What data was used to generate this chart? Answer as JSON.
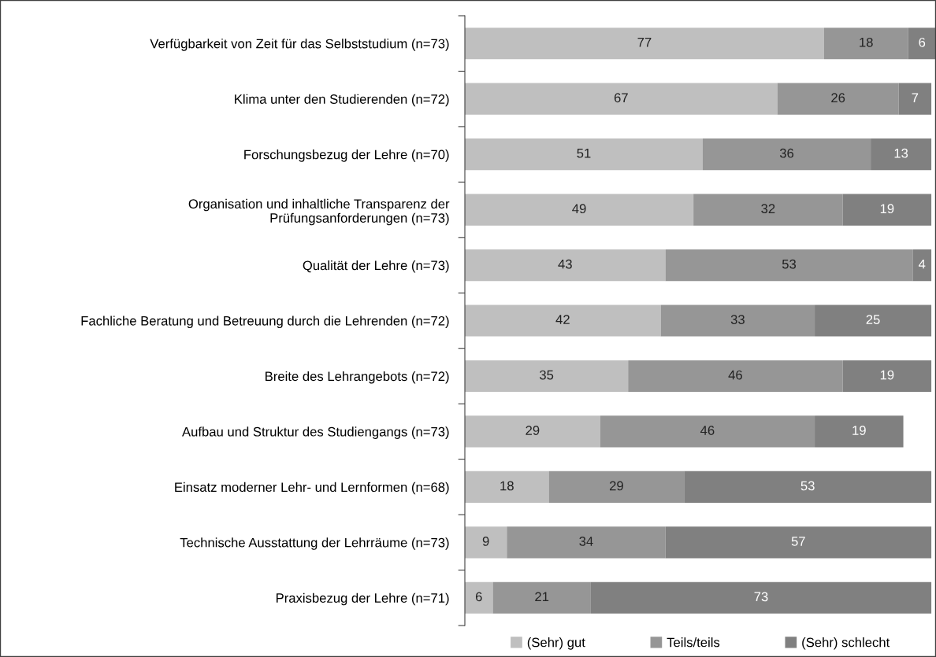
{
  "chart_data": {
    "type": "bar",
    "orientation": "horizontal",
    "stacked": true,
    "data_labels": true,
    "legend": "bottom",
    "grid": false,
    "categories": [
      "Verfügbarkeit von Zeit für das Selbststudium (n=73)",
      "Klima unter den Studierenden (n=72)",
      "Forschungsbezug der Lehre (n=70)",
      "Organisation und inhaltliche Transparenz der\nPrüfungsanforderungen (n=73)",
      "Qualität der Lehre (n=73)",
      "Fachliche Beratung und Betreuung durch die Lehrenden (n=72)",
      "Breite des Lehrangebots (n=72)",
      "Aufbau und Struktur des Studiengangs (n=73)",
      "Einsatz moderner Lehr- und Lernformen (n=68)",
      "Technische Ausstattung der Lehrräume (n=73)",
      "Praxisbezug der Lehre (n=71)"
    ],
    "series": [
      {
        "name": "(Sehr) gut",
        "color": "#bfbfbf",
        "values": [
          77,
          67,
          51,
          49,
          43,
          42,
          35,
          29,
          18,
          9,
          6
        ]
      },
      {
        "name": "Teils/teils",
        "color": "#969696",
        "values": [
          18,
          26,
          36,
          32,
          53,
          33,
          46,
          46,
          29,
          34,
          21
        ]
      },
      {
        "name": "(Sehr) schlecht",
        "color": "#808080",
        "values": [
          6,
          7,
          13,
          19,
          4,
          25,
          19,
          19,
          53,
          57,
          73
        ]
      }
    ]
  }
}
